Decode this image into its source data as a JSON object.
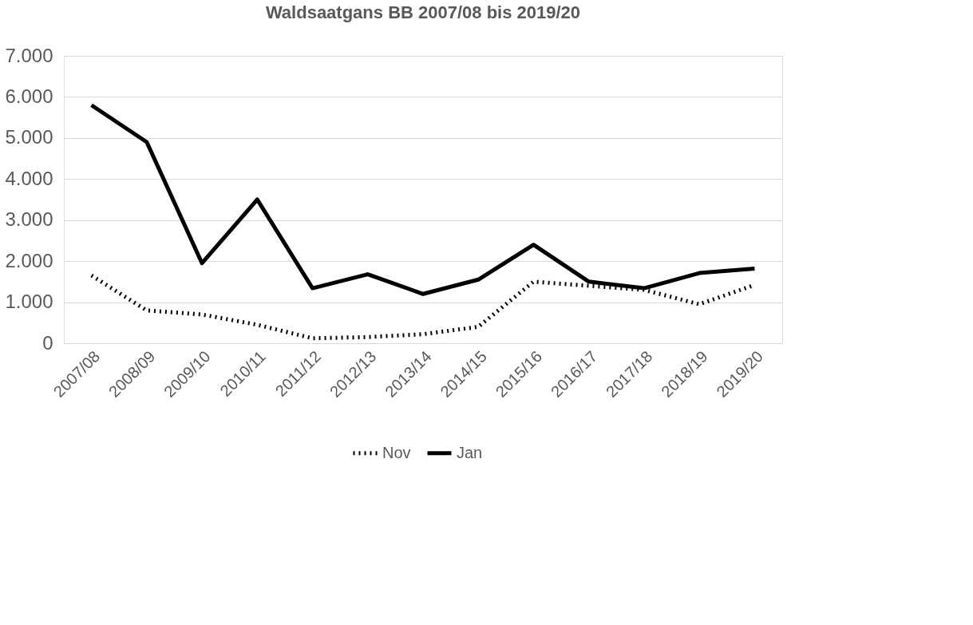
{
  "chart_data": {
    "type": "line",
    "title": "Waldsaatgans BB 2007/08 bis 2019/20",
    "categories": [
      "2007/08",
      "2008/09",
      "2009/10",
      "2010/11",
      "2011/12",
      "2012/13",
      "2013/14",
      "2014/15",
      "2015/16",
      "2016/17",
      "2017/18",
      "2018/19",
      "2019/20"
    ],
    "series": [
      {
        "name": "Nov",
        "color": "#000000",
        "line_style": "dotted",
        "values": [
          1650,
          800,
          700,
          450,
          120,
          150,
          220,
          400,
          1500,
          1400,
          1300,
          950,
          1420
        ]
      },
      {
        "name": "Jan",
        "color": "#000000",
        "line_style": "solid",
        "values": [
          5800,
          4900,
          1950,
          3500,
          1340,
          1680,
          1200,
          1550,
          2400,
          1500,
          1340,
          1710,
          1820
        ]
      }
    ],
    "ylim": [
      0,
      7000
    ],
    "yticks": [
      0,
      {
        "value": 1000,
        "label": "1.000"
      },
      {
        "value": 2000,
        "label": "2.000"
      },
      {
        "value": 3000,
        "label": "3.000"
      },
      {
        "value": 4000,
        "label": "4.000"
      },
      {
        "value": 5000,
        "label": "5.000"
      },
      {
        "value": 6000,
        "label": "6.000"
      },
      {
        "value": 7000,
        "label": "7.000"
      }
    ],
    "grid": "y",
    "legend": "bottom",
    "marker": "none"
  }
}
